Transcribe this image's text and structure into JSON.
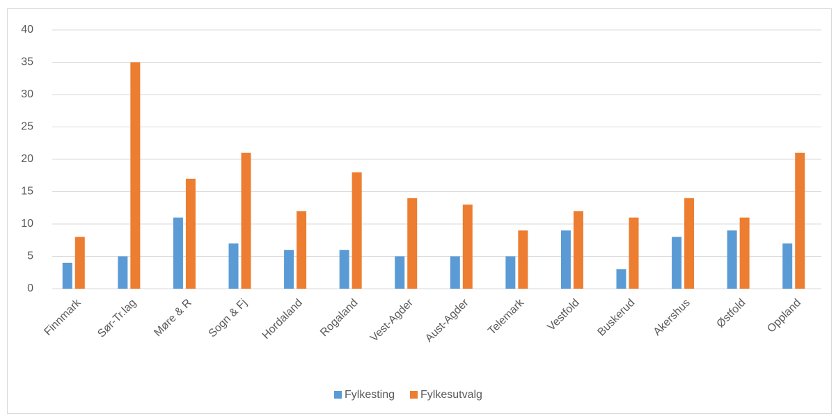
{
  "chart_data": {
    "type": "bar",
    "categories": [
      "Finnmark",
      "Sør-Tr.lag",
      "Møre & R",
      "Sogn & Fj",
      "Hordaland",
      "Rogaland",
      "Vest-Agder",
      "Aust-Agder",
      "Telemark",
      "Vestfold",
      "Buskerud",
      "Akershus",
      "Østfold",
      "Oppland"
    ],
    "series": [
      {
        "name": "Fylkesting",
        "color": "#5b9bd5",
        "values": [
          4,
          5,
          11,
          7,
          6,
          6,
          5,
          5,
          5,
          9,
          3,
          8,
          9,
          7
        ]
      },
      {
        "name": "Fylkesutvalg",
        "color": "#ed7d31",
        "values": [
          8,
          35,
          17,
          21,
          12,
          18,
          14,
          13,
          9,
          12,
          11,
          14,
          11,
          21
        ]
      }
    ],
    "ylim": [
      0,
      40
    ],
    "yticks": [
      0,
      5,
      10,
      15,
      20,
      25,
      30,
      35,
      40
    ],
    "grid": true,
    "legend": "bottom"
  }
}
